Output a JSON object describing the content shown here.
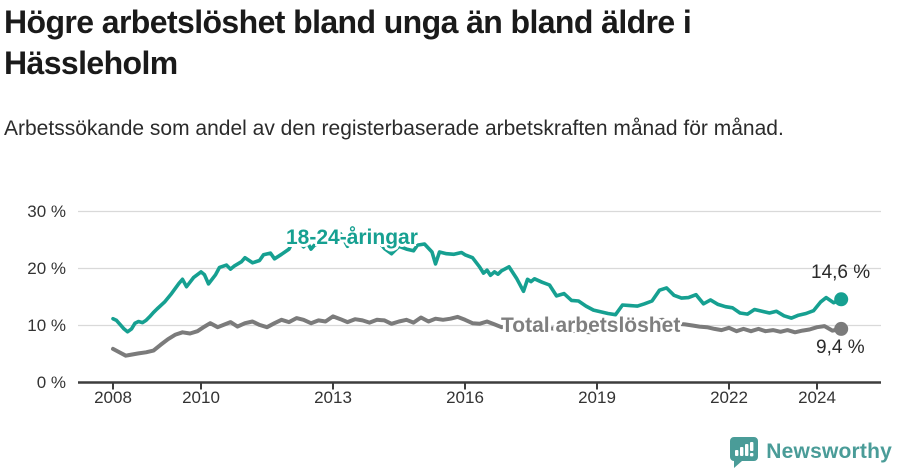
{
  "header": {
    "title": "Högre arbetslöshet bland unga än bland äldre i Hässleholm",
    "subtitle": "Arbetssökande som andel av den registerbaserade arbetskraften månad för månad."
  },
  "footer": {
    "brand": "Newsworthy",
    "brand_color": "#4a9c98",
    "logo_icon": "newsworthy-speech-bubble-barchart-icon"
  },
  "colors": {
    "youth_line": "#16a091",
    "total_line": "#7b7b7b",
    "total_label": "#7f7f7f",
    "grid": "#d9d9d9",
    "axis": "#3d3d3d",
    "tick_text": "#333333"
  },
  "chart_data": {
    "type": "line",
    "title": "Högre arbetslöshet bland unga än bland äldre i Hässleholm",
    "subtitle": "Arbetssökande som andel av den registerbaserade arbetskraften månad för månad.",
    "xlabel": "",
    "ylabel": "",
    "ylim": [
      0,
      30
    ],
    "ytick_values": [
      0,
      10,
      20,
      30
    ],
    "ytick_labels": [
      "0 %",
      "10 %",
      "20 %",
      "30 %"
    ],
    "xtick_values": [
      2008,
      2010,
      2013,
      2016,
      2019,
      2022,
      2024
    ],
    "xtick_labels": [
      "2008",
      "2010",
      "2013",
      "2016",
      "2019",
      "2022",
      "2024"
    ],
    "x_range": [
      2008,
      2024.55
    ],
    "grid": true,
    "legend_position": "inline-labels",
    "series": [
      {
        "name": "18-24-åringar",
        "color": "#16a091",
        "end_label": "14,6 %",
        "end_value": 14.6,
        "points": [
          [
            2008.0,
            11.2
          ],
          [
            2008.08,
            10.9
          ],
          [
            2008.17,
            10.1
          ],
          [
            2008.25,
            9.4
          ],
          [
            2008.33,
            8.9
          ],
          [
            2008.42,
            9.4
          ],
          [
            2008.5,
            10.4
          ],
          [
            2008.58,
            10.7
          ],
          [
            2008.67,
            10.5
          ],
          [
            2008.75,
            10.9
          ],
          [
            2008.83,
            11.5
          ],
          [
            2008.92,
            12.3
          ],
          [
            2009.0,
            12.9
          ],
          [
            2009.17,
            14.1
          ],
          [
            2009.33,
            15.6
          ],
          [
            2009.5,
            17.4
          ],
          [
            2009.58,
            18.1
          ],
          [
            2009.67,
            16.8
          ],
          [
            2009.75,
            17.6
          ],
          [
            2009.83,
            18.4
          ],
          [
            2010.0,
            19.4
          ],
          [
            2010.08,
            18.9
          ],
          [
            2010.17,
            17.3
          ],
          [
            2010.33,
            18.9
          ],
          [
            2010.42,
            20.2
          ],
          [
            2010.58,
            20.6
          ],
          [
            2010.67,
            19.9
          ],
          [
            2010.75,
            20.4
          ],
          [
            2010.92,
            21.2
          ],
          [
            2011.0,
            21.9
          ],
          [
            2011.17,
            21.0
          ],
          [
            2011.33,
            21.4
          ],
          [
            2011.42,
            22.4
          ],
          [
            2011.58,
            22.7
          ],
          [
            2011.67,
            21.7
          ],
          [
            2011.83,
            22.5
          ],
          [
            2012.0,
            23.4
          ],
          [
            2012.08,
            24.7
          ],
          [
            2012.17,
            25.1
          ],
          [
            2012.33,
            23.8
          ],
          [
            2012.42,
            24.5
          ],
          [
            2012.5,
            23.4
          ],
          [
            2012.58,
            24.1
          ],
          [
            2012.75,
            24.7
          ],
          [
            2012.92,
            25.3
          ],
          [
            2013.08,
            25.9
          ],
          [
            2013.17,
            26.1
          ],
          [
            2013.33,
            23.9
          ],
          [
            2013.5,
            25.1
          ],
          [
            2013.67,
            25.4
          ],
          [
            2013.83,
            24.7
          ],
          [
            2014.0,
            25.1
          ],
          [
            2014.17,
            23.5
          ],
          [
            2014.33,
            22.6
          ],
          [
            2014.5,
            23.9
          ],
          [
            2014.67,
            23.4
          ],
          [
            2014.83,
            23.1
          ],
          [
            2014.92,
            24.1
          ],
          [
            2015.08,
            24.3
          ],
          [
            2015.25,
            22.9
          ],
          [
            2015.33,
            20.8
          ],
          [
            2015.42,
            22.9
          ],
          [
            2015.58,
            22.6
          ],
          [
            2015.75,
            22.5
          ],
          [
            2015.92,
            22.8
          ],
          [
            2016.0,
            22.4
          ],
          [
            2016.17,
            21.9
          ],
          [
            2016.33,
            20.3
          ],
          [
            2016.42,
            19.2
          ],
          [
            2016.5,
            19.7
          ],
          [
            2016.58,
            18.8
          ],
          [
            2016.67,
            19.4
          ],
          [
            2016.75,
            19.0
          ],
          [
            2016.83,
            19.6
          ],
          [
            2017.0,
            20.3
          ],
          [
            2017.17,
            18.3
          ],
          [
            2017.33,
            16.0
          ],
          [
            2017.42,
            18.1
          ],
          [
            2017.5,
            17.7
          ],
          [
            2017.58,
            18.2
          ],
          [
            2017.75,
            17.6
          ],
          [
            2017.92,
            17.1
          ],
          [
            2018.08,
            15.2
          ],
          [
            2018.25,
            15.6
          ],
          [
            2018.42,
            14.4
          ],
          [
            2018.58,
            14.3
          ],
          [
            2018.75,
            13.4
          ],
          [
            2018.92,
            12.7
          ],
          [
            2019.08,
            12.4
          ],
          [
            2019.25,
            12.1
          ],
          [
            2019.42,
            11.9
          ],
          [
            2019.58,
            13.6
          ],
          [
            2019.75,
            13.5
          ],
          [
            2019.92,
            13.4
          ],
          [
            2020.08,
            13.8
          ],
          [
            2020.25,
            14.3
          ],
          [
            2020.42,
            16.2
          ],
          [
            2020.58,
            16.6
          ],
          [
            2020.75,
            15.3
          ],
          [
            2020.92,
            14.8
          ],
          [
            2021.08,
            14.9
          ],
          [
            2021.25,
            15.4
          ],
          [
            2021.42,
            13.8
          ],
          [
            2021.58,
            14.5
          ],
          [
            2021.75,
            13.7
          ],
          [
            2021.92,
            13.3
          ],
          [
            2022.08,
            13.1
          ],
          [
            2022.25,
            12.2
          ],
          [
            2022.42,
            12.0
          ],
          [
            2022.58,
            12.8
          ],
          [
            2022.75,
            12.5
          ],
          [
            2022.92,
            12.2
          ],
          [
            2023.08,
            12.5
          ],
          [
            2023.25,
            11.7
          ],
          [
            2023.42,
            11.3
          ],
          [
            2023.58,
            11.8
          ],
          [
            2023.75,
            12.1
          ],
          [
            2023.92,
            12.6
          ],
          [
            2024.08,
            14.1
          ],
          [
            2024.21,
            14.9
          ],
          [
            2024.38,
            14.0
          ],
          [
            2024.55,
            14.6
          ]
        ]
      },
      {
        "name": "Total arbetslöshet",
        "color": "#7b7b7b",
        "end_label": "9,4 %",
        "end_value": 9.4,
        "points": [
          [
            2008.0,
            5.9
          ],
          [
            2008.17,
            5.2
          ],
          [
            2008.29,
            4.7
          ],
          [
            2008.42,
            4.9
          ],
          [
            2008.58,
            5.1
          ],
          [
            2008.75,
            5.3
          ],
          [
            2008.92,
            5.6
          ],
          [
            2009.08,
            6.6
          ],
          [
            2009.25,
            7.6
          ],
          [
            2009.42,
            8.4
          ],
          [
            2009.58,
            8.8
          ],
          [
            2009.75,
            8.6
          ],
          [
            2009.92,
            9.0
          ],
          [
            2010.08,
            9.8
          ],
          [
            2010.21,
            10.4
          ],
          [
            2010.38,
            9.7
          ],
          [
            2010.54,
            10.2
          ],
          [
            2010.67,
            10.6
          ],
          [
            2010.83,
            9.8
          ],
          [
            2011.0,
            10.4
          ],
          [
            2011.17,
            10.7
          ],
          [
            2011.33,
            10.1
          ],
          [
            2011.5,
            9.7
          ],
          [
            2011.67,
            10.4
          ],
          [
            2011.83,
            11.0
          ],
          [
            2012.0,
            10.6
          ],
          [
            2012.17,
            11.3
          ],
          [
            2012.33,
            11.0
          ],
          [
            2012.5,
            10.4
          ],
          [
            2012.67,
            10.9
          ],
          [
            2012.83,
            10.7
          ],
          [
            2013.0,
            11.6
          ],
          [
            2013.17,
            11.1
          ],
          [
            2013.33,
            10.6
          ],
          [
            2013.5,
            11.1
          ],
          [
            2013.67,
            10.9
          ],
          [
            2013.83,
            10.5
          ],
          [
            2014.0,
            11.0
          ],
          [
            2014.17,
            10.9
          ],
          [
            2014.33,
            10.3
          ],
          [
            2014.5,
            10.7
          ],
          [
            2014.67,
            11.0
          ],
          [
            2014.83,
            10.5
          ],
          [
            2015.0,
            11.4
          ],
          [
            2015.17,
            10.7
          ],
          [
            2015.33,
            11.2
          ],
          [
            2015.5,
            11.0
          ],
          [
            2015.67,
            11.2
          ],
          [
            2015.83,
            11.5
          ],
          [
            2016.0,
            11.0
          ],
          [
            2016.17,
            10.4
          ],
          [
            2016.33,
            10.3
          ],
          [
            2016.5,
            10.7
          ],
          [
            2016.67,
            10.2
          ],
          [
            2016.83,
            9.7
          ],
          [
            2017.0,
            9.9
          ],
          [
            2017.17,
            9.5
          ],
          [
            2017.33,
            9.7
          ],
          [
            2017.5,
            9.8
          ],
          [
            2017.67,
            9.6
          ],
          [
            2017.83,
            9.4
          ],
          [
            2018.0,
            9.5
          ],
          [
            2018.17,
            9.2
          ],
          [
            2018.33,
            9.0
          ],
          [
            2018.5,
            9.1
          ],
          [
            2018.67,
            8.9
          ],
          [
            2018.83,
            8.8
          ],
          [
            2019.0,
            9.0
          ],
          [
            2019.17,
            9.1
          ],
          [
            2019.33,
            9.0
          ],
          [
            2019.5,
            9.2
          ],
          [
            2019.67,
            9.4
          ],
          [
            2019.83,
            9.5
          ],
          [
            2020.0,
            9.8
          ],
          [
            2020.17,
            10.3
          ],
          [
            2020.33,
            10.9
          ],
          [
            2020.5,
            11.0
          ],
          [
            2020.67,
            10.6
          ],
          [
            2020.83,
            10.3
          ],
          [
            2021.0,
            10.2
          ],
          [
            2021.17,
            10.0
          ],
          [
            2021.33,
            9.8
          ],
          [
            2021.5,
            9.7
          ],
          [
            2021.67,
            9.4
          ],
          [
            2021.83,
            9.2
          ],
          [
            2022.0,
            9.6
          ],
          [
            2022.17,
            9.0
          ],
          [
            2022.33,
            9.4
          ],
          [
            2022.5,
            9.0
          ],
          [
            2022.67,
            9.4
          ],
          [
            2022.83,
            9.0
          ],
          [
            2023.0,
            9.2
          ],
          [
            2023.17,
            8.9
          ],
          [
            2023.33,
            9.2
          ],
          [
            2023.5,
            8.8
          ],
          [
            2023.67,
            9.1
          ],
          [
            2023.83,
            9.3
          ],
          [
            2024.0,
            9.7
          ],
          [
            2024.17,
            9.9
          ],
          [
            2024.35,
            9.1
          ],
          [
            2024.55,
            9.4
          ]
        ]
      }
    ]
  }
}
